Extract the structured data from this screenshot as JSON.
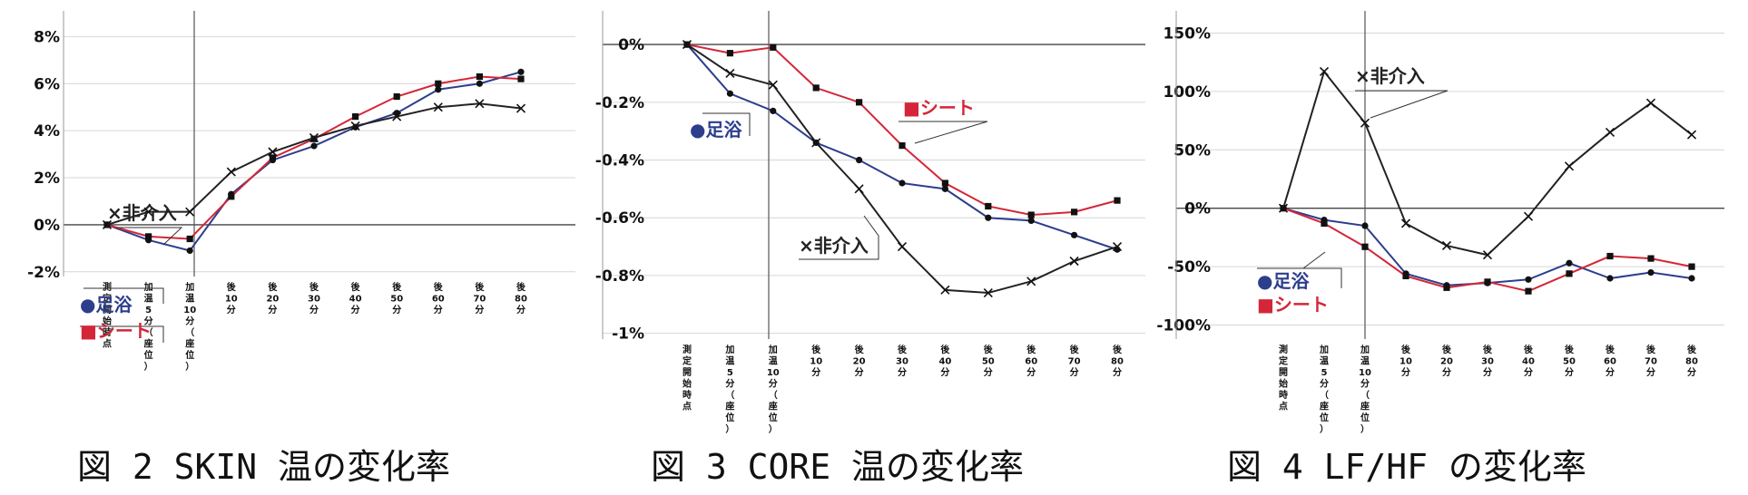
{
  "colors": {
    "footbath": "#2c3e8c",
    "sheet": "#d42638",
    "none": "#222222",
    "grid": "#d6d6d6"
  },
  "x_categories": [
    [
      "測",
      "定",
      "開",
      "始",
      "時",
      "点"
    ],
    [
      "加",
      "温",
      "5",
      "分",
      "（",
      "座",
      "位",
      "）"
    ],
    [
      "加",
      "温",
      "10",
      "分",
      "（",
      "座",
      "位",
      "）"
    ],
    [
      "後",
      "10",
      "分"
    ],
    [
      "後",
      "20",
      "分"
    ],
    [
      "後",
      "30",
      "分"
    ],
    [
      "後",
      "40",
      "分"
    ],
    [
      "後",
      "50",
      "分"
    ],
    [
      "後",
      "60",
      "分"
    ],
    [
      "後",
      "70",
      "分"
    ],
    [
      "後",
      "80",
      "分"
    ]
  ],
  "chart_data": [
    {
      "type": "line",
      "caption": "図 2 SKIN 温の変化率",
      "yticks": [
        "8%",
        "6%",
        "4%",
        "2%",
        "0%",
        "-2%"
      ],
      "ylim": [
        -2.2,
        8.4
      ],
      "tick_values": [
        8,
        6,
        4,
        2,
        0,
        -2
      ],
      "series": [
        {
          "name": "●足浴",
          "key": "footbath",
          "marker": "circle",
          "values": [
            0,
            -0.65,
            -1.1,
            1.3,
            2.75,
            3.35,
            4.15,
            4.75,
            5.75,
            6.0,
            6.5
          ]
        },
        {
          "name": "■シート",
          "key": "sheet",
          "marker": "square",
          "values": [
            0,
            -0.5,
            -0.6,
            1.2,
            2.85,
            3.65,
            4.6,
            5.45,
            6.0,
            6.3,
            6.2
          ]
        },
        {
          "name": "×非介入",
          "key": "none",
          "marker": "cross",
          "values": [
            0,
            0.55,
            0.55,
            2.25,
            3.1,
            3.7,
            4.2,
            4.6,
            5.0,
            5.15,
            4.95
          ]
        }
      ]
    },
    {
      "type": "line",
      "caption": "図 3 CORE 温の変化率",
      "yticks": [
        "0%",
        "-0.2%",
        "-0.4%",
        "-0.6%",
        "-0.8%",
        "-1%"
      ],
      "ylim": [
        -1.02,
        0.06
      ],
      "tick_values": [
        0,
        -0.2,
        -0.4,
        -0.6,
        -0.8,
        -1.0
      ],
      "series": [
        {
          "name": "●足浴",
          "key": "footbath",
          "marker": "circle",
          "values": [
            0,
            -0.17,
            -0.23,
            -0.34,
            -0.4,
            -0.48,
            -0.5,
            -0.6,
            -0.61,
            -0.66,
            -0.71
          ]
        },
        {
          "name": "■シート",
          "key": "sheet",
          "marker": "square",
          "values": [
            0,
            -0.03,
            -0.01,
            -0.15,
            -0.2,
            -0.35,
            -0.48,
            -0.56,
            -0.59,
            -0.58,
            -0.54
          ]
        },
        {
          "name": "×非介入",
          "key": "none",
          "marker": "cross",
          "values": [
            0,
            -0.1,
            -0.14,
            -0.34,
            -0.5,
            -0.7,
            -0.85,
            -0.86,
            -0.82,
            -0.75,
            -0.7
          ]
        }
      ]
    },
    {
      "type": "line",
      "caption": "図 4 LF/HF の変化率",
      "yticks": [
        "150%",
        "100%",
        "50%",
        "0%",
        "-50%",
        "-100%"
      ],
      "ylim": [
        -112,
        155
      ],
      "tick_values": [
        150,
        100,
        50,
        0,
        -50,
        -100
      ],
      "series": [
        {
          "name": "●足浴",
          "key": "footbath",
          "marker": "circle",
          "values": [
            0,
            -10,
            -15,
            -56,
            -66,
            -64,
            -61,
            -47,
            -60,
            -55,
            -60
          ]
        },
        {
          "name": "■シート",
          "key": "sheet",
          "marker": "square",
          "values": [
            0,
            -13,
            -33,
            -58,
            -68,
            -63,
            -71,
            -56,
            -41,
            -43,
            -50
          ]
        },
        {
          "name": "×非介入",
          "key": "none",
          "marker": "cross",
          "values": [
            0,
            117,
            73,
            -13,
            -32,
            -40,
            -7,
            36,
            65,
            90,
            63
          ]
        }
      ]
    }
  ]
}
